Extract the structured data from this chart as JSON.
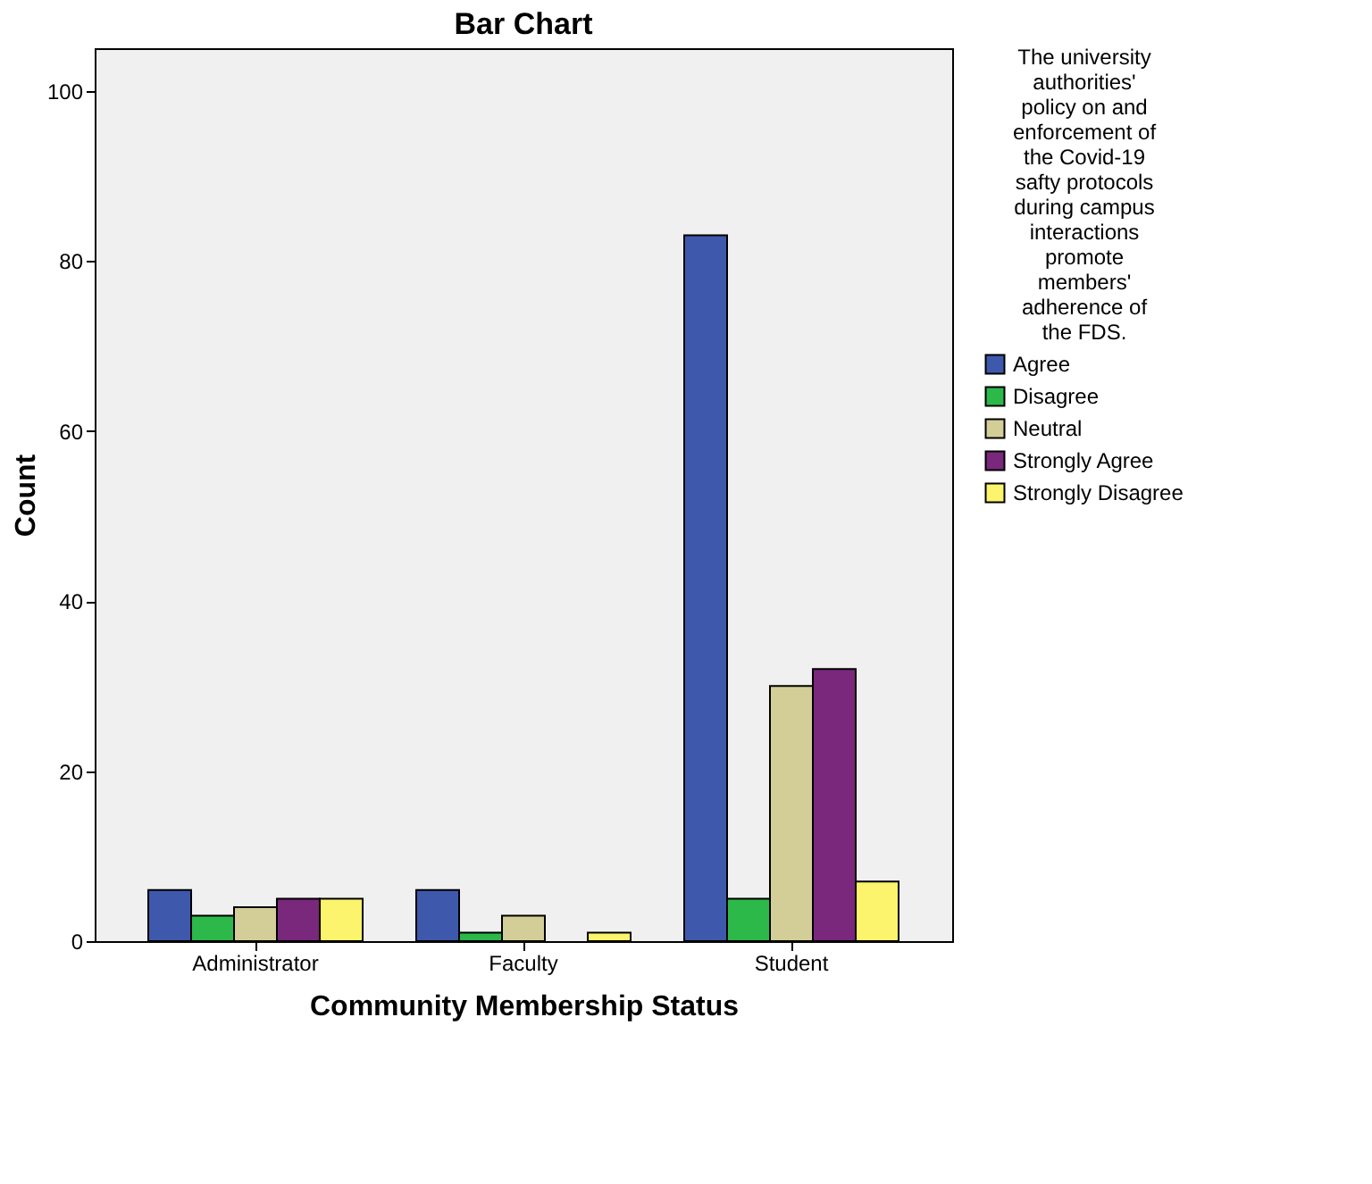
{
  "chart_data": {
    "type": "bar",
    "title": "Bar Chart",
    "xlabel": "Community Membership Status",
    "ylabel": "Count",
    "legend_title": "The university authorities' policy on and enforcement of the Covid-19 safty protocols during campus interactions promote members' adherence of the FDS.",
    "categories": [
      "Administrator",
      "Faculty",
      "Student"
    ],
    "series": [
      {
        "name": "Agree",
        "color": "#3e58ac",
        "values": [
          6,
          6,
          83
        ]
      },
      {
        "name": "Disagree",
        "color": "#2db84a",
        "values": [
          3,
          1,
          5
        ]
      },
      {
        "name": "Neutral",
        "color": "#d3ce97",
        "values": [
          4,
          3,
          30
        ]
      },
      {
        "name": "Strongly Agree",
        "color": "#79287c",
        "values": [
          5,
          null,
          32
        ]
      },
      {
        "name": "Strongly Disagree",
        "color": "#fbf46c",
        "values": [
          5,
          1,
          7
        ]
      }
    ],
    "ylim": [
      0,
      105
    ],
    "yticks": [
      0,
      20,
      40,
      60,
      80,
      100
    ],
    "grid": false,
    "legend": "right"
  }
}
